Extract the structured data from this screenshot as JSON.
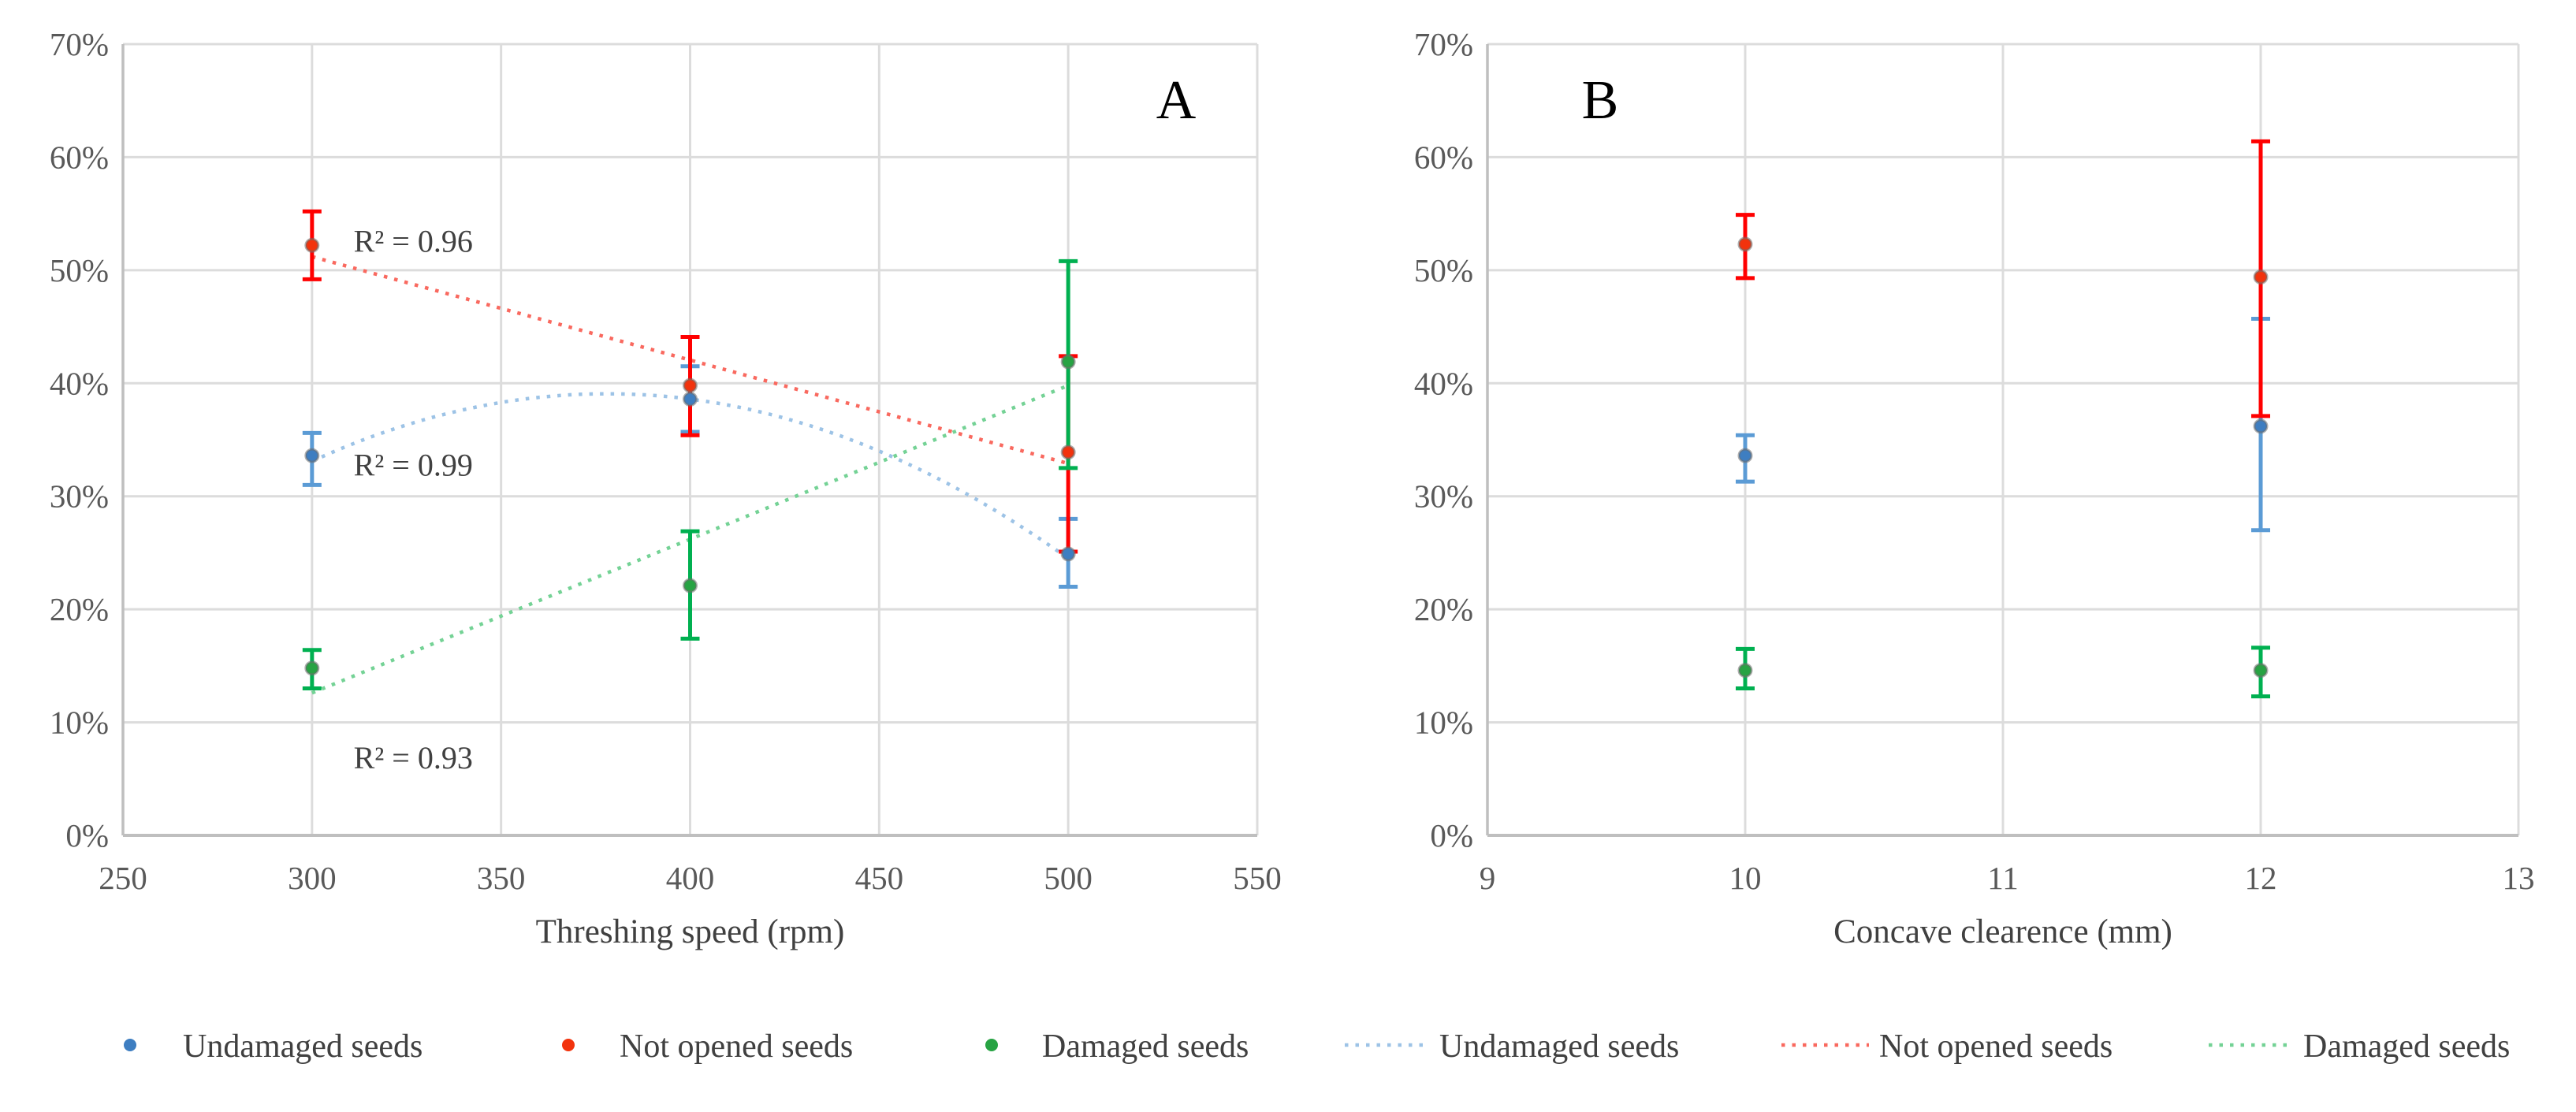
{
  "figure_title": "",
  "chart_data": [
    {
      "type": "scatter",
      "panel_label": "A",
      "xlabel": "Threshing speed (rpm)",
      "ylabel": "",
      "xlim": [
        250,
        550
      ],
      "x_ticks": [
        250,
        300,
        350,
        400,
        450,
        500,
        550
      ],
      "ylim": [
        0,
        70
      ],
      "y_ticks": [
        0,
        10,
        20,
        30,
        40,
        50,
        60,
        70
      ],
      "y_tick_suffix": "%",
      "grid": true,
      "series": [
        {
          "name": "Undamaged seeds",
          "marker_color": "#3E7EC1",
          "error_color": "#5B9BD5",
          "points": [
            {
              "x": 300,
              "y": 33.6,
              "lo": 31.0,
              "hi": 35.6
            },
            {
              "x": 400,
              "y": 38.6,
              "lo": 35.7,
              "hi": 41.5
            },
            {
              "x": 500,
              "y": 24.9,
              "lo": 22.0,
              "hi": 28.0
            }
          ]
        },
        {
          "name": "Not opened seeds",
          "marker_color": "#F2330D",
          "error_color": "#FF0000",
          "points": [
            {
              "x": 300,
              "y": 52.2,
              "lo": 49.2,
              "hi": 55.2
            },
            {
              "x": 400,
              "y": 39.8,
              "lo": 35.4,
              "hi": 44.1
            },
            {
              "x": 500,
              "y": 33.9,
              "lo": 25.1,
              "hi": 42.4
            }
          ]
        },
        {
          "name": "Damaged seeds",
          "marker_color": "#27A343",
          "error_color": "#00B050",
          "points": [
            {
              "x": 300,
              "y": 14.8,
              "lo": 13.0,
              "hi": 16.4
            },
            {
              "x": 400,
              "y": 22.1,
              "lo": 17.4,
              "hi": 26.9
            },
            {
              "x": 500,
              "y": 41.9,
              "lo": 32.5,
              "hi": 50.8
            }
          ]
        }
      ],
      "trendlines": [
        {
          "name": "Undamaged seeds",
          "kind": "quadratic",
          "color": "#9DC3E6",
          "x_start": 300,
          "x_end": 500,
          "poly": {
            "c0": 38.6,
            "c1": -4.3,
            "c2": -9.8,
            "x_center": 400,
            "x_scale": 100
          },
          "r2_label": {
            "text": "R² = 0.99",
            "x": 311,
            "y": 32.8
          }
        },
        {
          "name": "Not opened seeds",
          "kind": "linear",
          "color": "#F9695F",
          "x_start": 300,
          "x_end": 500,
          "y_start": 51.2,
          "y_end": 32.9,
          "r2_label": {
            "text": "R² = 0.96",
            "x": 311,
            "y": 52.6
          }
        },
        {
          "name": "Damaged seeds",
          "kind": "linear",
          "color": "#74D295",
          "x_start": 300,
          "x_end": 500,
          "y_start": 12.6,
          "y_end": 39.8,
          "r2_label": {
            "text": "R² = 0.93",
            "x": 311,
            "y": 6.9
          }
        }
      ]
    },
    {
      "type": "scatter",
      "panel_label": "B",
      "xlabel": "Concave clearence (mm)",
      "ylabel": "",
      "xlim": [
        9,
        13
      ],
      "x_ticks": [
        9,
        10,
        11,
        12,
        13
      ],
      "ylim": [
        0,
        70
      ],
      "y_ticks": [
        0,
        10,
        20,
        30,
        40,
        50,
        60,
        70
      ],
      "y_tick_suffix": "%",
      "grid": true,
      "series": [
        {
          "name": "Undamaged seeds",
          "marker_color": "#3E7EC1",
          "error_color": "#5B9BD5",
          "points": [
            {
              "x": 10,
              "y": 33.6,
              "lo": 31.3,
              "hi": 35.4
            },
            {
              "x": 12,
              "y": 36.2,
              "lo": 27.0,
              "hi": 45.7
            }
          ]
        },
        {
          "name": "Not opened seeds",
          "marker_color": "#F2330D",
          "error_color": "#FF0000",
          "points": [
            {
              "x": 10,
              "y": 52.3,
              "lo": 49.3,
              "hi": 54.9
            },
            {
              "x": 12,
              "y": 49.4,
              "lo": 37.1,
              "hi": 61.4
            }
          ]
        },
        {
          "name": "Damaged seeds",
          "marker_color": "#27A343",
          "error_color": "#00B050",
          "points": [
            {
              "x": 10,
              "y": 14.6,
              "lo": 13.0,
              "hi": 16.5
            },
            {
              "x": 12,
              "y": 14.6,
              "lo": 12.3,
              "hi": 16.6
            }
          ]
        }
      ],
      "trendlines": []
    }
  ],
  "legend": {
    "items": [
      {
        "label": "Undamaged seeds",
        "marker": "dot",
        "color": "#3E7EC1"
      },
      {
        "label": "Not opened seeds",
        "marker": "dot",
        "color": "#F2330D"
      },
      {
        "label": "Damaged seeds",
        "marker": "dot",
        "color": "#27A343"
      },
      {
        "label": "Undamaged seeds",
        "marker": "dotted-line",
        "color": "#9DC3E6"
      },
      {
        "label": "Not opened seeds",
        "marker": "dotted-line",
        "color": "#F9695F"
      },
      {
        "label": "Damaged seeds",
        "marker": "dotted-line",
        "color": "#74D295"
      }
    ]
  },
  "colors": {
    "gridline": "#DCDCDC",
    "axis_line": "#BFBFBF",
    "tick_text": "#595959",
    "axis_title_text": "#404040",
    "annotation_text": "#404040",
    "panel_letter": "#000000"
  }
}
